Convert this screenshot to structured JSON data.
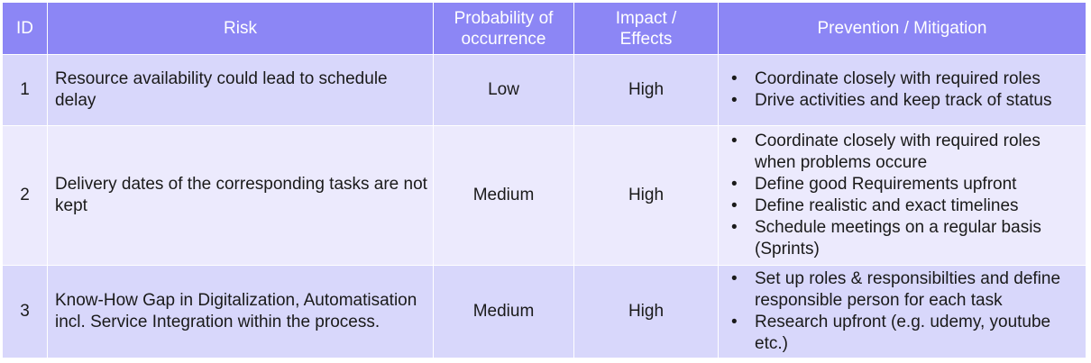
{
  "columns": {
    "id": "ID",
    "risk": "Risk",
    "probability_line1": "Probability of",
    "probability_line2": "occurrence",
    "impact_line1": "Impact /",
    "impact_line2": "Effects",
    "mitigation": "Prevention / Mitigation"
  },
  "rows": [
    {
      "id": "1",
      "risk": "Resource availability could lead to schedule delay",
      "probability": "Low",
      "impact": "High",
      "mitigation": [
        "Coordinate closely with required roles",
        "Drive activities and keep track of status"
      ]
    },
    {
      "id": "2",
      "risk": "Delivery dates of the corresponding tasks are not kept",
      "probability": "Medium",
      "impact": "High",
      "mitigation": [
        "Coordinate closely with required roles when problems occure",
        "Define good Requirements upfront",
        "Define realistic and exact timelines",
        "Schedule meetings on a regular basis (Sprints)"
      ]
    },
    {
      "id": "3",
      "risk": "Know-How Gap in Digitalization, Automatisation incl. Service Integration within the process.",
      "probability": "Medium",
      "impact": "High",
      "mitigation": [
        "Set up roles & responsibilties and define responsible person for each task",
        "Research upfront (e.g. udemy, youtube etc.)"
      ]
    }
  ]
}
